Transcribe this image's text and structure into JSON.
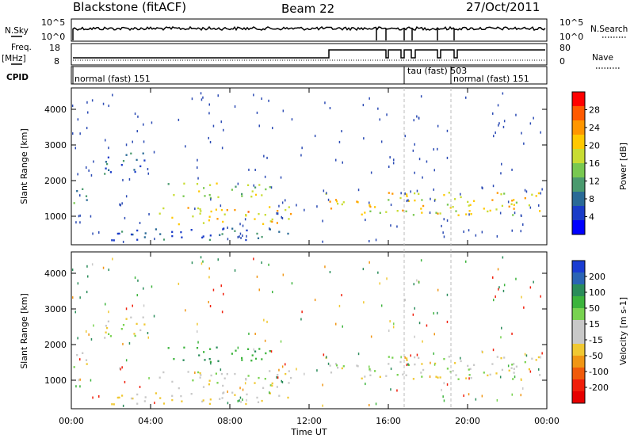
{
  "header": {
    "radar": "Blackstone (fitACF)",
    "beam": "Beam 22",
    "date": "27/Oct/2011"
  },
  "left_labels": {
    "nsky": "N.Sky",
    "freq": "Freq.",
    "freq_unit": "[MHz]",
    "cpid": "CPID"
  },
  "right_labels": {
    "nsearch": "N.Search",
    "nave": "Nave"
  },
  "noise_panel": {
    "left_ticks": [
      "10^5",
      "10^0"
    ],
    "right_ticks": [
      "10^5",
      "10^0"
    ]
  },
  "freq_panel": {
    "left_ticks": [
      "18",
      "8"
    ],
    "right_ticks": [
      "80",
      "0"
    ]
  },
  "cpid_modes": [
    {
      "text": "normal (fast) 151",
      "start_hour": 0
    },
    {
      "text": "tau (fast) 503",
      "start_hour": 16.75
    },
    {
      "text": "normal (fast) 151",
      "start_hour": 19.1
    }
  ],
  "power_panel": {
    "ylabel": "Slant Range [km]",
    "cbar_label": "Power [dB]",
    "cbar_ticks": [
      "28",
      "24",
      "20",
      "16",
      "12",
      "8",
      "4"
    ],
    "cbar_colors": [
      "#ff0000",
      "#ff5a00",
      "#ff9600",
      "#ffc800",
      "#c8dc32",
      "#78c850",
      "#4a9a6e",
      "#2a6a96",
      "#1a3cc8",
      "#0000ff"
    ]
  },
  "velocity_panel": {
    "ylabel": "Slant Range [km]",
    "cbar_label": "Velocity [m s-1]",
    "cbar_ticks": [
      "200",
      "100",
      "50",
      "15",
      "-15",
      "-50",
      "-100",
      "-200"
    ],
    "cbar_colors": [
      "#1a3cd2",
      "#2a64b4",
      "#2a8c5a",
      "#3cb43c",
      "#78d250",
      "#c8c8c8",
      "#c8c8c8",
      "#f0c832",
      "#f09614",
      "#f05a0a",
      "#f01e0a",
      "#e60000"
    ]
  },
  "y_ticks": [
    "4000",
    "3000",
    "2000",
    "1000"
  ],
  "x_ticks": [
    "00:00",
    "04:00",
    "08:00",
    "12:00",
    "16:00",
    "20:00",
    "00:00"
  ],
  "xlabel": "Time UT",
  "chart_data": {
    "type": "heatmap",
    "x_range_hours": [
      0,
      24
    ],
    "y_range_km": [
      200,
      4600
    ],
    "scatter_regions": [
      {
        "t0": 0.1,
        "t1": 1.0,
        "r0": 1350,
        "r1": 1800,
        "power": 8,
        "velocity": 0
      },
      {
        "t0": 1.5,
        "t1": 4.0,
        "r0": 2200,
        "r1": 2800,
        "power": 6,
        "velocity": 0
      },
      {
        "t0": 4.3,
        "t1": 11.2,
        "r0": 800,
        "r1": 1300,
        "power": 20,
        "velocity": 0
      },
      {
        "t0": 4.8,
        "t1": 10.0,
        "r0": 1500,
        "r1": 1950,
        "power": 14,
        "velocity": 60
      },
      {
        "t0": 2.0,
        "t1": 11.5,
        "r0": 350,
        "r1": 700,
        "power": 5,
        "velocity": -20
      },
      {
        "t0": 12.8,
        "t1": 23.9,
        "r0": 1050,
        "r1": 1700,
        "power": 18,
        "velocity": 0
      }
    ]
  }
}
